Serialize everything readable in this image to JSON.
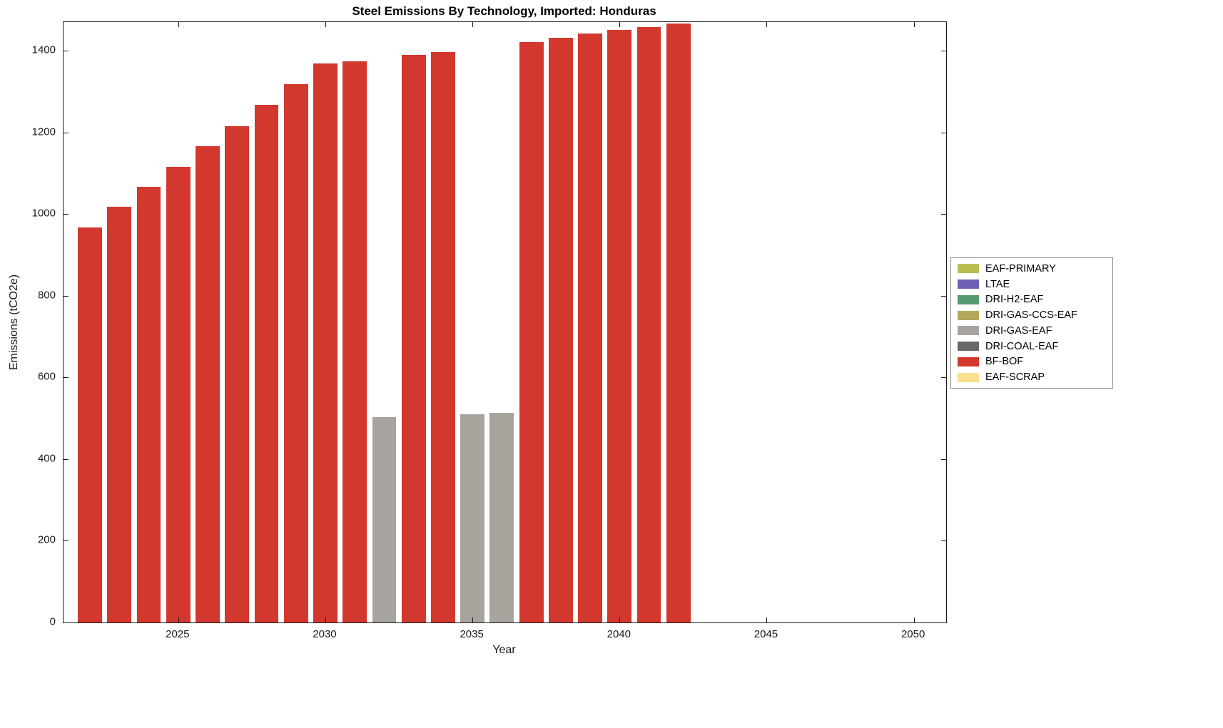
{
  "chart_data": {
    "type": "bar",
    "title": "Steel Emissions By Technology, Imported: Honduras",
    "xlabel": "Year",
    "ylabel": "Emissions (tCO2e)",
    "xlim": [
      2021.1,
      2051.1
    ],
    "ylim": [
      0,
      1470
    ],
    "x_ticks": [
      2025,
      2030,
      2035,
      2040,
      2045,
      2050
    ],
    "y_ticks": [
      0,
      200,
      400,
      600,
      800,
      1000,
      1200,
      1400
    ],
    "grid": false,
    "legend_position": "right-outside",
    "legend": [
      {
        "label": "EAF-PRIMARY",
        "color": "#b9bf52"
      },
      {
        "label": "LTAE",
        "color": "#6e61b5"
      },
      {
        "label": "DRI-H2-EAF",
        "color": "#55996f"
      },
      {
        "label": "DRI-GAS-CCS-EAF",
        "color": "#b3a85c"
      },
      {
        "label": "DRI-GAS-EAF",
        "color": "#a7a49e"
      },
      {
        "label": "DRI-COAL-EAF",
        "color": "#686868"
      },
      {
        "label": "BF-BOF",
        "color": "#d2382e"
      },
      {
        "label": "EAF-SCRAP",
        "color": "#fcdf8d"
      }
    ],
    "bar_width_years": 0.82,
    "series_by_bar": [
      {
        "year": 2022,
        "value": 967,
        "tech": "BF-BOF"
      },
      {
        "year": 2023,
        "value": 1018,
        "tech": "BF-BOF"
      },
      {
        "year": 2024,
        "value": 1066,
        "tech": "BF-BOF"
      },
      {
        "year": 2025,
        "value": 1116,
        "tech": "BF-BOF"
      },
      {
        "year": 2026,
        "value": 1166,
        "tech": "BF-BOF"
      },
      {
        "year": 2027,
        "value": 1216,
        "tech": "BF-BOF"
      },
      {
        "year": 2028,
        "value": 1267,
        "tech": "BF-BOF"
      },
      {
        "year": 2029,
        "value": 1318,
        "tech": "BF-BOF"
      },
      {
        "year": 2030,
        "value": 1368,
        "tech": "BF-BOF"
      },
      {
        "year": 2031,
        "value": 1374,
        "tech": "BF-BOF"
      },
      {
        "year": 2032,
        "value": 503,
        "tech": "DRI-GAS-EAF"
      },
      {
        "year": 2033,
        "value": 1390,
        "tech": "BF-BOF"
      },
      {
        "year": 2034,
        "value": 1397,
        "tech": "BF-BOF"
      },
      {
        "year": 2035,
        "value": 510,
        "tech": "DRI-GAS-EAF"
      },
      {
        "year": 2036,
        "value": 513,
        "tech": "DRI-GAS-EAF"
      },
      {
        "year": 2037,
        "value": 1422,
        "tech": "BF-BOF"
      },
      {
        "year": 2038,
        "value": 1432,
        "tech": "BF-BOF"
      },
      {
        "year": 2039,
        "value": 1442,
        "tech": "BF-BOF"
      },
      {
        "year": 2040,
        "value": 1451,
        "tech": "BF-BOF"
      },
      {
        "year": 2041,
        "value": 1458,
        "tech": "BF-BOF"
      },
      {
        "year": 2042,
        "value": 1466,
        "tech": "BF-BOF"
      }
    ]
  }
}
